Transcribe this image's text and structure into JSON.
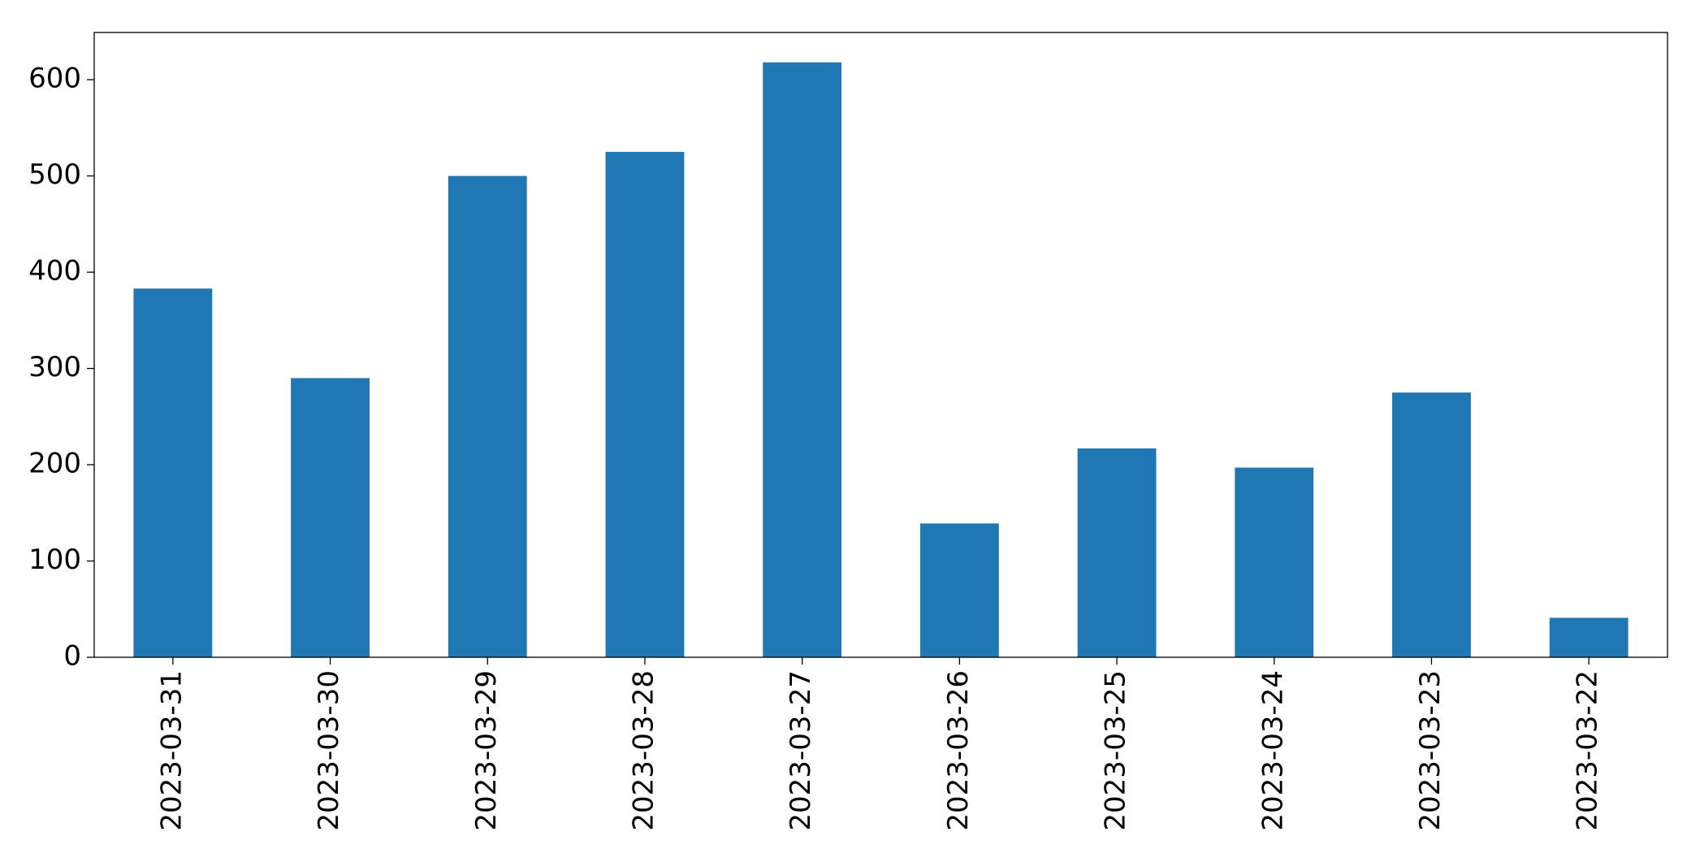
{
  "chart_data": {
    "type": "bar",
    "categories": [
      "2023-03-31",
      "2023-03-30",
      "2023-03-29",
      "2023-03-28",
      "2023-03-27",
      "2023-03-26",
      "2023-03-25",
      "2023-03-24",
      "2023-03-23",
      "2023-03-22"
    ],
    "values": [
      383,
      290,
      500,
      525,
      618,
      139,
      217,
      197,
      275,
      41
    ],
    "color": "#1f77b4",
    "ylim": [
      0,
      649
    ],
    "yticks": [
      0,
      100,
      200,
      300,
      400,
      500,
      600
    ],
    "grid": false
  }
}
